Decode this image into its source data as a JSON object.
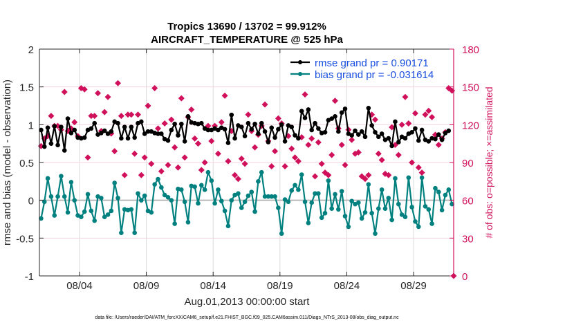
{
  "chart_data": {
    "type": "line",
    "title": "Tropics 13690 / 13702 = 99.912%",
    "subtitle": "AIRCRAFT_TEMPERATURE @ 525 hPa",
    "xlabel": "Aug.01,2013 00:00:00 start",
    "ylabel": "rmse and bias (model - observation)",
    "ylabel_right": "# of obs: o=possible; ×=assimilated",
    "footer": "data file: /Users/raeder/DAI/ATM_forcXX/CAM6_setup/f.e21.FHIST_BGC.f09_025.CAM6assim.011/Diags_NTrS_2013-08/obs_diag_output.nc",
    "xlim_days": [
      0,
      31
    ],
    "ylim": [
      -1,
      2
    ],
    "ylim_right": [
      0,
      180
    ],
    "x_ticks": [
      {
        "day": 3,
        "label": "08/04"
      },
      {
        "day": 8,
        "label": "08/09"
      },
      {
        "day": 13,
        "label": "08/14"
      },
      {
        "day": 18,
        "label": "08/19"
      },
      {
        "day": 23,
        "label": "08/24"
      },
      {
        "day": 28,
        "label": "08/29"
      }
    ],
    "y_ticks": [
      {
        "v": 2,
        "label": "2"
      },
      {
        "v": 1.5,
        "label": "1.5"
      },
      {
        "v": 1,
        "label": "1"
      },
      {
        "v": 0.5,
        "label": "0.5"
      },
      {
        "v": 0,
        "label": "0"
      },
      {
        "v": -0.5,
        "label": "-0.5"
      },
      {
        "v": -1,
        "label": "-1"
      }
    ],
    "y_ticks_right": [
      {
        "v": 180,
        "label": "180"
      },
      {
        "v": 150,
        "label": "150"
      },
      {
        "v": 120,
        "label": "120"
      },
      {
        "v": 90,
        "label": "90"
      },
      {
        "v": 60,
        "label": "60"
      },
      {
        "v": 30,
        "label": "30"
      },
      {
        "v": 0,
        "label": "0"
      }
    ],
    "grid": true,
    "legend_position": "top-right",
    "time_step_days": 0.25,
    "series": [
      {
        "name": "rmse grand pr = 0.90171",
        "color": "#000000",
        "axis": "left",
        "values": [
          0.93,
          0.71,
          0.96,
          0.75,
          0.98,
          0.73,
          0.97,
          0.66,
          1.08,
          0.89,
          0.93,
          0.83,
          0.82,
          0.83,
          0.93,
          0.95,
          1.02,
          0.87,
          0.89,
          0.92,
          0.88,
          0.91,
          1.04,
          1.02,
          0.82,
          0.97,
          0.82,
          0.97,
          0.83,
          1.02,
          1.04,
          0.88,
          0.91,
          0.91,
          0.89,
          0.88,
          0.88,
          0.81,
          0.79,
          0.93,
          1.01,
          0.86,
          1.01,
          0.78,
          1.11,
          1.03,
          1.02,
          1.01,
          1.02,
          0.95,
          0.93,
          0.93,
          0.95,
          0.93,
          0.96,
          0.94,
          0.76,
          1.13,
          0.82,
          0.99,
          0.97,
          0.85,
          1.02,
          0.94,
          1.01,
          0.88,
          1.02,
          0.91,
          0.77,
          0.96,
          0.83,
          0.94,
          1.0,
          0.78,
          0.99,
          0.97,
          0.86,
          0.82,
          1.18,
          1.09,
          1.2,
          0.93,
          1.02,
          0.95,
          0.89,
          0.9,
          1.06,
          1.08,
          1.11,
          0.91,
          1.16,
          1.21,
          0.88,
          0.86,
          0.92,
          0.87,
          0.91,
          0.84,
          1.22,
          0.99,
          0.9,
          0.84,
          0.88,
          0.8,
          0.82,
          0.72,
          1.04,
          0.77,
          0.84,
          0.82,
          0.88,
          0.9,
          0.95,
          0.79,
          0.93,
          0.8,
          0.78,
          0.82,
          0.81,
          0.87,
          0.8,
          0.89,
          0.92
        ]
      },
      {
        "name": "bias grand pr = -0.031614",
        "color": "#00807f",
        "axis": "left",
        "values": [
          -0.24,
          -0.02,
          0.29,
          0.05,
          -0.2,
          0.05,
          0.32,
          0.05,
          -0.16,
          0.24,
          0.0,
          -0.2,
          -0.22,
          -0.15,
          0.08,
          -0.14,
          -0.27,
          0.05,
          0.03,
          -0.22,
          -0.19,
          -0.14,
          0.23,
          0.03,
          -0.43,
          -0.12,
          -0.13,
          -0.12,
          -0.43,
          0.09,
          0.0,
          0.06,
          -0.14,
          -0.16,
          0.21,
          0.28,
          0.17,
          0.07,
          0.04,
          0.0,
          -0.31,
          0.15,
          0.14,
          -0.02,
          -0.29,
          0.19,
          0.18,
          -0.04,
          0.2,
          0.14,
          0.37,
          0.26,
          -0.04,
          0.14,
          -0.01,
          -0.14,
          -0.34,
          0.0,
          0.07,
          0.09,
          -0.1,
          -0.02,
          0.06,
          0.11,
          -0.15,
          0.25,
          0.37,
          0.05,
          0.05,
          0.05,
          0.05,
          -0.1,
          -0.44,
          0.01,
          -0.02,
          0.13,
          0.2,
          0.14,
          0.34,
          -0.02,
          -0.3,
          -0.03,
          0.09,
          0.09,
          -0.23,
          -0.17,
          0.26,
          -0.11,
          0.08,
          -0.12,
          0.12,
          -0.21,
          -0.35,
          -0.01,
          -0.05,
          -0.03,
          -0.24,
          -0.16,
          0.21,
          -0.17,
          -0.44,
          -0.11,
          0.14,
          -0.11,
          0.03,
          -0.26,
          0.29,
          -0.05,
          -0.19,
          -0.22,
          0.3,
          -0.09,
          -0.28,
          -0.35,
          0.3,
          -0.08,
          -0.12,
          -0.31,
          0.16,
          0.11,
          -0.13,
          0.07,
          0.14,
          -0.05
        ]
      },
      {
        "name": "# of obs",
        "color": "#d0105a",
        "axis": "right",
        "marker_only": true,
        "values": [
          103,
          109,
          111,
          127,
          119,
          119,
          116,
          146,
          115,
          117,
          122,
          111,
          149,
          148,
          94,
          127,
          127,
          145,
          115,
          130,
          142,
          113,
          99,
          153,
          127,
          80,
          128,
          128,
          97,
          128,
          80,
          94,
          135,
          89,
          149,
          117,
          83,
          121,
          88,
          124,
          102,
          86,
          141,
          94,
          126,
          132,
          109,
          105,
          84,
          90,
          119,
          107,
          119,
          97,
          122,
          143,
          91,
          115,
          80,
          77,
          93,
          89,
          128,
          115,
          102,
          112,
          119,
          136,
          107,
          87,
          99,
          125,
          121,
          87,
          111,
          101,
          94,
          91,
          110,
          144,
          104,
          109,
          79,
          106,
          89,
          82,
          80,
          96,
          139,
          117,
          104,
          88,
          116,
          108,
          97,
          98,
          79,
          77,
          80,
          128,
          124,
          97,
          92,
          81,
          80,
          118,
          104,
          96,
          120,
          142,
          121,
          90,
          129,
          86,
          82,
          128,
          131,
          126,
          112,
          104,
          109,
          114,
          149,
          147,
          0
        ]
      }
    ],
    "zero_line": 0
  }
}
